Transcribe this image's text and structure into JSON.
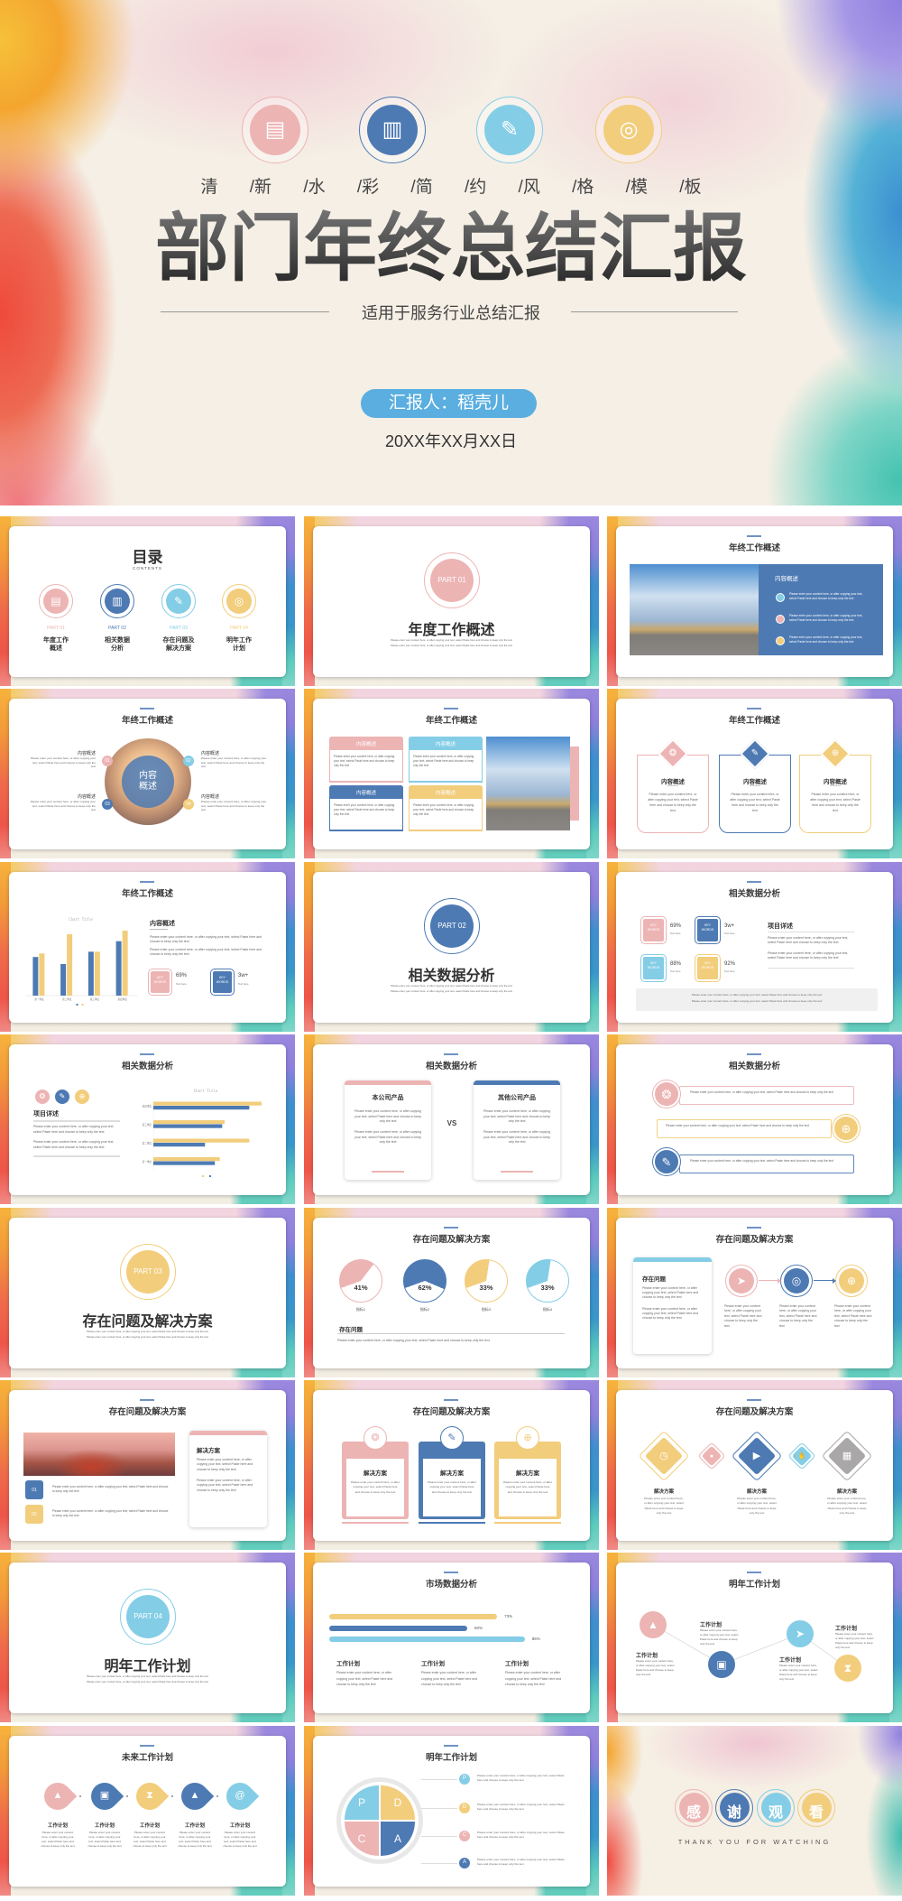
{
  "palette": {
    "pink": "#EDB4B4",
    "blue": "#4D7AB3",
    "light_blue": "#84CDE6",
    "yellow": "#F2CD7C",
    "gray": "#A9A7A8",
    "pill": "#5AAEE0"
  },
  "common": {
    "lorem": "Please enter your content here, or after copying your text, select Paste here and choose to keep only the text"
  },
  "cover": {
    "icons": [
      "document-search",
      "bar-chart",
      "pen",
      "target"
    ],
    "tagline": "清 /新 /水 /彩 /简 /约 /风 /格 /模 /板",
    "title": "部门年终总结汇报",
    "subtitle": "适用于服务行业总结汇报",
    "reporter": "汇报人：稻壳儿",
    "date": "20XX年XX月XX日"
  },
  "slides": [
    {
      "title": "目录",
      "subtitle": "CONTENTS",
      "items": [
        {
          "part": "PART 01",
          "name": "年度工作\n概述",
          "icon": "document-search"
        },
        {
          "part": "PART 02",
          "name": "相关数据\n分析",
          "icon": "bar-chart"
        },
        {
          "part": "PART 03",
          "name": "存在问题及\n解决方案",
          "icon": "pen"
        },
        {
          "part": "PART 04",
          "name": "明年工作\n计划",
          "icon": "target"
        }
      ]
    },
    {
      "part": "PART 01",
      "title": "年度工作概述"
    },
    {
      "title": "年终工作概述",
      "panel_title": "内容概述"
    },
    {
      "title": "年终工作概述",
      "center": "内容概述",
      "items": [
        {
          "num": "01",
          "heading": "内容概述"
        },
        {
          "num": "02",
          "heading": "内容概述"
        },
        {
          "num": "03",
          "heading": "内容概述"
        },
        {
          "num": "04",
          "heading": "内容概述"
        }
      ]
    },
    {
      "title": "年终工作概述",
      "boxes": [
        "内容概述",
        "内容概述",
        "内容概述",
        "内容概述"
      ]
    },
    {
      "title": "年终工作概述",
      "cards": [
        {
          "heading": "内容概述",
          "icon": "coins"
        },
        {
          "heading": "内容概述",
          "icon": "edit"
        },
        {
          "heading": "内容概述",
          "icon": "globe"
        }
      ]
    },
    {
      "title": "年终工作概述",
      "heading": "内容概述",
      "stats": [
        {
          "badge": "KEY WORDS",
          "value": "69%",
          "caption": "Text here"
        },
        {
          "badge": "KEY WORDS",
          "value": "3w+",
          "caption": "Text here"
        }
      ]
    },
    {
      "part": "PART 02",
      "title": "相关数据分析"
    },
    {
      "title": "相关数据分析",
      "heading": "项目详述",
      "stats": [
        {
          "badge": "KEY WORDS",
          "value": "69%",
          "caption": "Text here"
        },
        {
          "badge": "KEY WORDS",
          "value": "3w+",
          "caption": "Text here"
        },
        {
          "badge": "KEY WORDS",
          "value": "88%",
          "caption": "Text here"
        },
        {
          "badge": "KEY WORDS",
          "value": "92%",
          "caption": "Text here"
        }
      ]
    },
    {
      "title": "相关数据分析",
      "heading": "项目详述",
      "icons": [
        "coins",
        "edit",
        "globe"
      ]
    },
    {
      "title": "相关数据分析",
      "left": "本公司产品",
      "vs": "VS",
      "right": "其他公司产品"
    },
    {
      "title": "相关数据分析",
      "icons": [
        "coins",
        "globe",
        "edit"
      ]
    },
    {
      "part": "PART 03",
      "title": "存在问题及解决方案"
    },
    {
      "title": "存在问题及解决方案",
      "heading": "存在问题",
      "pies": [
        {
          "value": 41,
          "text": "41%",
          "label": "指标1"
        },
        {
          "value": 62,
          "text": "62%",
          "label": "指标2"
        },
        {
          "value": 33,
          "text": "33%",
          "label": "指标3"
        },
        {
          "value": 33,
          "text": "33%",
          "label": "指标4"
        }
      ]
    },
    {
      "title": "存在问题及解决方案",
      "card_heading": "存在问题",
      "icons": [
        "paper-plane",
        "target",
        "globe"
      ]
    },
    {
      "title": "存在问题及解决方案",
      "card_heading": "解决方案",
      "items": [
        "01",
        "02"
      ]
    },
    {
      "title": "存在问题及解决方案",
      "cards": [
        {
          "heading": "解决方案",
          "icon": "coins"
        },
        {
          "heading": "解决方案",
          "icon": "edit"
        },
        {
          "heading": "解决方案",
          "icon": "globe"
        }
      ]
    },
    {
      "title": "存在问题及解决方案",
      "labels": [
        "解决方案",
        "解决方案",
        "解决方案"
      ],
      "icons": [
        "clock",
        "apple",
        "play",
        "hand",
        "calendar"
      ]
    },
    {
      "part": "PART 04",
      "title": "明年工作计划"
    },
    {
      "title": "市场数据分析",
      "bars": [
        {
          "value": 73,
          "text": "73%"
        },
        {
          "value": 60,
          "text": "60%"
        },
        {
          "value": 85,
          "text": "85%"
        }
      ],
      "columns": [
        "工作计划",
        "工作计划",
        "工作计划"
      ]
    },
    {
      "title": "明年工作计划",
      "items": [
        "工作计划",
        "工作计划",
        "工作计划",
        "工作计划"
      ],
      "icons": [
        "graduation-cap",
        "image",
        "paper-plane",
        "hourglass"
      ]
    },
    {
      "title": "未来工作计划",
      "items": [
        "工作计划",
        "工作计划",
        "工作计划",
        "工作计划",
        "工作计划"
      ],
      "icons": [
        "graduation-cap",
        "image",
        "hourglass",
        "graduation-cap",
        "at"
      ]
    },
    {
      "title": "明年工作计划",
      "letters": [
        "P",
        "D",
        "C",
        "A"
      ]
    },
    {
      "chars": [
        "感",
        "谢",
        "观",
        "看"
      ],
      "subtitle": "THANK YOU FOR WATCHING"
    }
  ],
  "chart_data": [
    {
      "type": "bar",
      "orientation": "vertical",
      "title": "Chart Title",
      "categories": [
        "第一季度",
        "第二季度",
        "第三季度",
        "第四季度"
      ],
      "series": [
        {
          "values": [
            4.4,
            3.6,
            5.0,
            6.2
          ],
          "color": "#4D7AB3"
        },
        {
          "values": [
            4.8,
            7.0,
            5.0,
            7.4
          ],
          "color": "#F2CD7C"
        }
      ],
      "grid": false,
      "legend": "bottom"
    },
    {
      "type": "bar",
      "orientation": "horizontal",
      "title": "Chart Title",
      "categories": [
        "第一季度",
        "第二季度",
        "第三季度",
        "第四季度"
      ],
      "series": [
        {
          "values": [
            2.7,
            3.9,
            2.9,
            4.4
          ],
          "color": "#F2CD7C"
        },
        {
          "values": [
            2.5,
            2.1,
            2.8,
            3.9
          ],
          "color": "#4D7AB3"
        }
      ],
      "grid": false,
      "legend": "bottom"
    }
  ]
}
